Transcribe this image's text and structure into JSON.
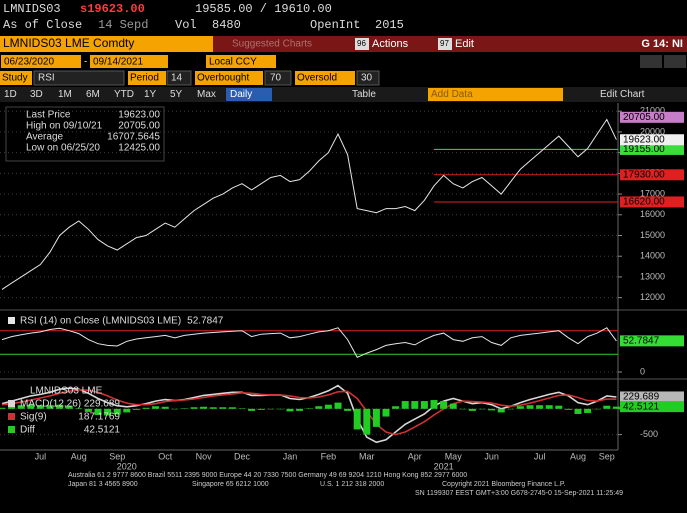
{
  "header": {
    "ticker": "LMNIDS03",
    "last": "s19623.00",
    "bid_ask": "19585.00 / 19610.00",
    "as_of_label": "As of Close",
    "as_of": "14 Sepd",
    "vol_label": "Vol",
    "vol": "8480",
    "oi_label": "OpenInt",
    "oi": "2015"
  },
  "toolbar": {
    "security": "LMNIDS03 LME Comdty",
    "suggested": "Suggested Charts",
    "actions_num": "96",
    "actions": "Actions",
    "edit_num": "97",
    "edit": "Edit",
    "page": "G 14: NI",
    "start": "06/23/2020",
    "date_sep": "-",
    "end": "09/14/2021",
    "currency": "Local CCY",
    "study_label": "Study",
    "study": "RSI",
    "period_label": "Period",
    "period": "14",
    "overbought_label": "Overbought",
    "overbought": "70",
    "oversold_label": "Oversold",
    "oversold": "30",
    "ranges": [
      "1D",
      "3D",
      "1M",
      "6M",
      "YTD",
      "1Y",
      "5Y",
      "Max"
    ],
    "frequency": "Daily",
    "table": "Table",
    "add_data": "Add Data",
    "edit_chart": "Edit Chart"
  },
  "chart_data": [
    {
      "type": "line",
      "stats": [
        {
          "label": "High on 09/10/21",
          "value": "20705.00"
        },
        {
          "label": "Average",
          "value": "16707.5645"
        },
        {
          "label": "Low on 06/25/20",
          "value": "12425.00"
        }
      ],
      "series": [
        {
          "name": "Last Price",
          "color": "#e6e6e6",
          "last_label": "19623.00",
          "tag_color": "#f0f0f0",
          "values": [
            12400,
            12700,
            13000,
            13300,
            13600,
            14200,
            15000,
            15400,
            15700,
            15300,
            14800,
            14500,
            14300,
            14600,
            14900,
            15000,
            15300,
            15600,
            15400,
            15800,
            16200,
            16500,
            16800,
            17000,
            17300,
            17500,
            17200,
            17500,
            17800,
            17900,
            17600,
            17700,
            18100,
            18600,
            19000,
            19900,
            18900,
            16300,
            16200,
            16100,
            16300,
            16300,
            16400,
            16200,
            16700,
            17400,
            17900,
            17500,
            17300,
            17600,
            17800,
            17400,
            17000,
            17600,
            18200,
            18600,
            19000,
            19400,
            19800,
            19300,
            18800,
            19200,
            19900,
            20600,
            19623
          ]
        }
      ],
      "ylim": [
        11500,
        21300
      ],
      "yticks": [
        12000,
        13000,
        14000,
        15000,
        16000,
        17000,
        18000,
        19000,
        20000,
        21000
      ],
      "grid": true,
      "levels": [
        {
          "value": 20705,
          "label": "20705.00",
          "color": "#c77dc7",
          "line": false
        },
        {
          "value": 19155,
          "label": "19155.00",
          "color": "#3ddc3d",
          "line": true
        },
        {
          "value": 17930,
          "label": "17930.00",
          "color": "#e02020",
          "line": true
        },
        {
          "value": 16620,
          "label": "16620.00",
          "color": "#e02020",
          "line": true
        }
      ]
    },
    {
      "type": "line",
      "series": [
        {
          "name": "RSI (14) on Close (LMNIDS03 LME)",
          "color": "#e6e6e6",
          "last_label": "52.7847",
          "tag_color": "#33dd33",
          "values": [
            55,
            60,
            63,
            66,
            68,
            72,
            74,
            70,
            65,
            55,
            48,
            45,
            44,
            52,
            56,
            58,
            60,
            62,
            58,
            62,
            64,
            66,
            67,
            68,
            69,
            70,
            60,
            64,
            65,
            66,
            58,
            60,
            64,
            68,
            70,
            75,
            55,
            25,
            32,
            38,
            45,
            48,
            50,
            46,
            55,
            62,
            66,
            55,
            52,
            58,
            60,
            50,
            45,
            58,
            62,
            64,
            66,
            68,
            70,
            58,
            48,
            60,
            66,
            75,
            52.7847
          ]
        }
      ],
      "ylim": [
        0,
        100
      ],
      "yticks": [
        0
      ],
      "hlines": [
        {
          "value": 70,
          "color": "#e02020"
        },
        {
          "value": 30,
          "color": "#2ecc2e"
        }
      ]
    },
    {
      "type": "macd",
      "title": "LMNIDS03 LME",
      "categories": [
        null,
        null,
        null,
        null,
        "Jul",
        null,
        null,
        null,
        "Aug",
        null,
        null,
        null,
        "Sep",
        null,
        null,
        null,
        null,
        "Oct",
        null,
        null,
        null,
        "Nov",
        null,
        null,
        null,
        "Dec",
        null,
        null,
        null,
        null,
        "Jan",
        null,
        null,
        null,
        "Feb",
        null,
        null,
        null,
        "Mar",
        null,
        null,
        null,
        null,
        "Apr",
        null,
        null,
        null,
        "May",
        null,
        null,
        null,
        "Jun",
        null,
        null,
        null,
        null,
        "Jul",
        null,
        null,
        null,
        "Aug",
        null,
        null,
        "Sep",
        null
      ],
      "year_categories": [
        null,
        null,
        null,
        null,
        null,
        null,
        null,
        null,
        null,
        null,
        null,
        null,
        null,
        "2020",
        null,
        null,
        null,
        null,
        null,
        null,
        null,
        null,
        null,
        null,
        null,
        null,
        null,
        null,
        null,
        null,
        null,
        null,
        null,
        null,
        null,
        null,
        null,
        null,
        null,
        null,
        null,
        null,
        null,
        null,
        null,
        null,
        "2021",
        null,
        null,
        null,
        null,
        null,
        null,
        null,
        null,
        null,
        null,
        null,
        null,
        null,
        null,
        null,
        null,
        null,
        null
      ],
      "series": [
        {
          "name": "MACD(12,26)",
          "color": "#d8d8d8",
          "last_label": "229.689",
          "tag_color": "#b8b8b8",
          "values": [
            100,
            150,
            200,
            250,
            280,
            320,
            380,
            400,
            380,
            300,
            200,
            120,
            60,
            40,
            60,
            100,
            150,
            180,
            160,
            180,
            220,
            260,
            280,
            300,
            320,
            320,
            260,
            260,
            270,
            270,
            200,
            180,
            220,
            280,
            350,
            450,
            300,
            -200,
            -550,
            -650,
            -600,
            -450,
            -300,
            -200,
            -100,
            50,
            150,
            200,
            150,
            100,
            120,
            80,
            0,
            50,
            120,
            180,
            230,
            280,
            320,
            250,
            120,
            80,
            150,
            250,
            229.689
          ]
        },
        {
          "name": "Sig(9)",
          "color": "#d03030",
          "last_label": "187.1769",
          "values": [
            80,
            100,
            130,
            170,
            210,
            250,
            300,
            340,
            370,
            360,
            320,
            250,
            170,
            110,
            80,
            80,
            100,
            140,
            160,
            170,
            190,
            220,
            250,
            270,
            290,
            310,
            300,
            280,
            270,
            270,
            250,
            220,
            210,
            230,
            270,
            330,
            340,
            200,
            -50,
            -300,
            -450,
            -500,
            -450,
            -350,
            -250,
            -120,
            0,
            100,
            150,
            140,
            130,
            110,
            70,
            50,
            70,
            110,
            160,
            210,
            260,
            270,
            220,
            160,
            150,
            190,
            187.1769
          ]
        },
        {
          "name": "Diff",
          "color": "#22cc22",
          "type": "bar",
          "last_label": "42.5121",
          "tag_color": "#22cc22",
          "values": [
            20,
            50,
            70,
            80,
            70,
            70,
            80,
            60,
            10,
            -60,
            -120,
            -130,
            -110,
            -70,
            -20,
            20,
            50,
            40,
            0,
            10,
            30,
            40,
            30,
            30,
            30,
            10,
            -40,
            -20,
            0,
            0,
            -50,
            -40,
            10,
            50,
            80,
            120,
            -40,
            -400,
            -500,
            -350,
            -150,
            50,
            150,
            150,
            150,
            170,
            150,
            100,
            0,
            -40,
            -10,
            -30,
            -70,
            0,
            50,
            70,
            70,
            70,
            60,
            -20,
            -100,
            -80,
            0,
            60,
            42.5121
          ]
        }
      ],
      "ylim": [
        -760,
        520
      ],
      "yticks": [
        -500,
        0
      ]
    }
  ],
  "footer": {
    "line1": "Australia 61 2 9777 8600 Brazil 5511 2395 9000 Europe 44 20 7330 7500 Germany 49 69 9204 1210 Hong Kong 852 2977 6000",
    "japan": "Japan 81 3 4565 8900",
    "singapore": "Singapore 65 6212 1000",
    "us": "U.S. 1 212 318 2000",
    "copyright": "Copyright 2021 Bloomberg Finance L.P.",
    "sn": "SN 1199307 EEST GMT+3:00 G678-2745-0 15-Sep-2021 11:25:49"
  }
}
